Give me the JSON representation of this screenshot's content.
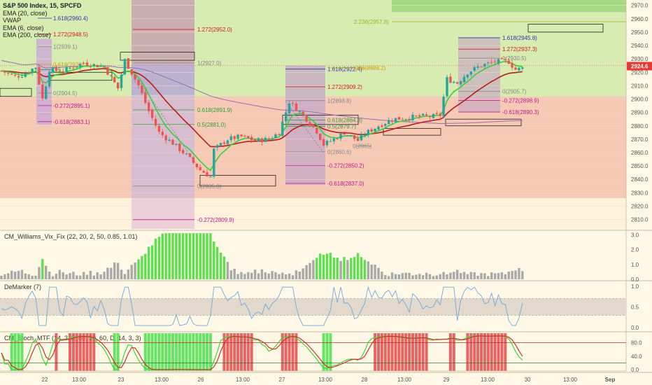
{
  "chart_data": {
    "type": "candlestick",
    "title": "S&P 500 Index, 15, SPCFD",
    "legend_items": [
      "S&P 500 Index, 15, SPCFD",
      "EMA (20, close)",
      "VWAP",
      "EMA (6, close)",
      "EMA (200, close)"
    ],
    "x_tick_labels": [
      "22",
      "13:00",
      "23",
      "13:00",
      "26",
      "13:00",
      "27",
      "13:00",
      "28",
      "13:00",
      "29",
      "13:00",
      "30",
      "13:00",
      "Sep"
    ],
    "price_axis": {
      "ticks": [
        2970.0,
        2960.0,
        2950.0,
        2940.0,
        2930.0,
        2920.0,
        2910.0,
        2900.0,
        2890.0,
        2880.0,
        2870.0,
        2860.0,
        2850.0,
        2840.0,
        2830.0,
        2820.0,
        2810.0
      ],
      "labels": [
        "2970.0",
        "2960.0",
        "2950.0",
        "2940.0",
        "2930.0",
        "2920.0",
        "2910.0",
        "2900.0",
        "2890.0",
        "2880.0",
        "2870.0",
        "2860.0",
        "2850.0",
        "2840.0",
        "2830.0",
        "2820.0",
        "2810.0"
      ],
      "range": [
        2803,
        2974
      ],
      "last_price": 2924.6,
      "last_price_label": "2924.6"
    },
    "price_series": {
      "anchors": [
        [
          0,
          2921
        ],
        [
          4,
          2917
        ],
        [
          6,
          2918
        ],
        [
          10,
          2924
        ],
        [
          12,
          2900
        ],
        [
          14,
          2922
        ],
        [
          18,
          2921
        ],
        [
          24,
          2927
        ],
        [
          30,
          2924
        ],
        [
          34,
          2908
        ],
        [
          36,
          2929
        ],
        [
          40,
          2910
        ],
        [
          43,
          2891
        ],
        [
          46,
          2875
        ],
        [
          50,
          2867
        ],
        [
          54,
          2858
        ],
        [
          58,
          2847
        ],
        [
          61,
          2842
        ],
        [
          62,
          2862
        ],
        [
          66,
          2870
        ],
        [
          70,
          2872
        ],
        [
          74,
          2869
        ],
        [
          78,
          2870
        ],
        [
          81,
          2875
        ],
        [
          84,
          2898
        ],
        [
          88,
          2888
        ],
        [
          92,
          2876
        ],
        [
          94,
          2866
        ],
        [
          97,
          2870
        ],
        [
          100,
          2875
        ],
        [
          104,
          2869
        ],
        [
          106,
          2874
        ],
        [
          110,
          2880
        ],
        [
          114,
          2885
        ],
        [
          118,
          2886
        ],
        [
          122,
          2887
        ],
        [
          126,
          2887
        ],
        [
          128,
          2888
        ],
        [
          130,
          2915
        ],
        [
          133,
          2912
        ],
        [
          136,
          2920
        ],
        [
          140,
          2925
        ],
        [
          144,
          2928
        ],
        [
          148,
          2928
        ],
        [
          150,
          2922
        ],
        [
          152,
          2923
        ]
      ],
      "count": 153
    },
    "fib_levels": [
      {
        "label": "1.618(2960.4)",
        "value": 2960.4,
        "color": "#2a3aa8"
      },
      {
        "label": "1.272(2948.5)",
        "value": 2948.5,
        "color": "#d81c1c"
      },
      {
        "label": "1(2939.1)",
        "value": 2939.1,
        "color": "#888888"
      },
      {
        "label": "0.618(2926)",
        "value": 2926.0,
        "color": "#d4a017"
      },
      {
        "label": "0.5",
        "value": 2922.0,
        "color": "#2e9e3a"
      },
      {
        "label": "0(2904.5)",
        "value": 2904.5,
        "color": "#888888"
      },
      {
        "label": "-0.272(2895.1)",
        "value": 2895.1,
        "color": "#c2188f"
      },
      {
        "label": "-0.618(2883.1)",
        "value": 2883.1,
        "color": "#c2188f"
      },
      {
        "label": "1.272(2952.0)",
        "value": 2952.0,
        "color": "#d81c1c"
      },
      {
        "label": "1(2927.0)",
        "value": 2927.0,
        "color": "#888888"
      },
      {
        "label": "0.618(2891.9)",
        "value": 2891.9,
        "color": "#2e9e3a"
      },
      {
        "label": "0.5(2881.0)",
        "value": 2881.0,
        "color": "#2e9e3a"
      },
      {
        "label": "0(2835.0)",
        "value": 2835.0,
        "color": "#888888"
      },
      {
        "label": "-0.272(2809.9)",
        "value": 2809.9,
        "color": "#c2188f"
      },
      {
        "label": "1.618(2922.4)",
        "value": 2922.4,
        "color": "#2a3aa8"
      },
      {
        "label": "1.272(2909.2)",
        "value": 2909.2,
        "color": "#d81c1c"
      },
      {
        "label": "1(2898.8)",
        "value": 2898.8,
        "color": "#888888"
      },
      {
        "label": "0.618(2884.3)",
        "value": 2884.3,
        "color": "#2e9e3a"
      },
      {
        "label": "0.5(2879.7)",
        "value": 2879.7,
        "color": "#2e9e3a"
      },
      {
        "label": "0(2860.6)",
        "value": 2860.6,
        "color": "#888888"
      },
      {
        "label": "-0.272(2850.2)",
        "value": 2850.2,
        "color": "#c2188f"
      },
      {
        "label": "-0.618(2837.0)",
        "value": 2837.0,
        "color": "#c2188f"
      },
      {
        "label": "0(2865)",
        "value": 2865.0,
        "color": "#888888"
      },
      {
        "label": ".236(2923.2)",
        "value": 2923.2,
        "color": "#d4a017"
      },
      {
        "label": "2.236(2957.8)",
        "value": 2957.8,
        "color": "#9ab81e"
      },
      {
        "label": "1.618(2945.8)",
        "value": 2945.8,
        "color": "#2a3aa8"
      },
      {
        "label": "1.272(2937.3)",
        "value": 2937.3,
        "color": "#d81c1c"
      },
      {
        "label": "1(2930.5)",
        "value": 2930.5,
        "color": "#888888"
      },
      {
        "label": "0(2905.7)",
        "value": 2905.7,
        "color": "#888888"
      },
      {
        "label": "-0.272(2898.9)",
        "value": 2898.9,
        "color": "#c2188f"
      },
      {
        "label": "-0.618(2890.3)",
        "value": 2890.3,
        "color": "#c2188f"
      }
    ],
    "subpanels": [
      {
        "name": "CM_Williams_Vix_Fix",
        "params": "(22, 20, 2, 50, 0.85, 1.01)",
        "ticks": [
          "3.0",
          "2.0",
          "1.0",
          "0.0"
        ]
      },
      {
        "name": "DeMarker",
        "params": "(7)",
        "ticks": [
          "1.0",
          "0.5",
          "0.0"
        ]
      },
      {
        "name": "CM_Stoch_MTF",
        "params": "(14, 3, 3, 80, 20, 60, D, 14, 3, 3)",
        "ticks": [
          "80.0",
          "40.0",
          "0.0"
        ]
      }
    ],
    "colors": {
      "up": "#26a69a",
      "down": "#ef5350",
      "ema20": "#b71c1c",
      "ema6": "#34d138",
      "vwap": "#9c6fb0",
      "zone_green": "#d6ecb0",
      "zone_red": "#f6c9b5",
      "last_price": "#e53935"
    }
  }
}
